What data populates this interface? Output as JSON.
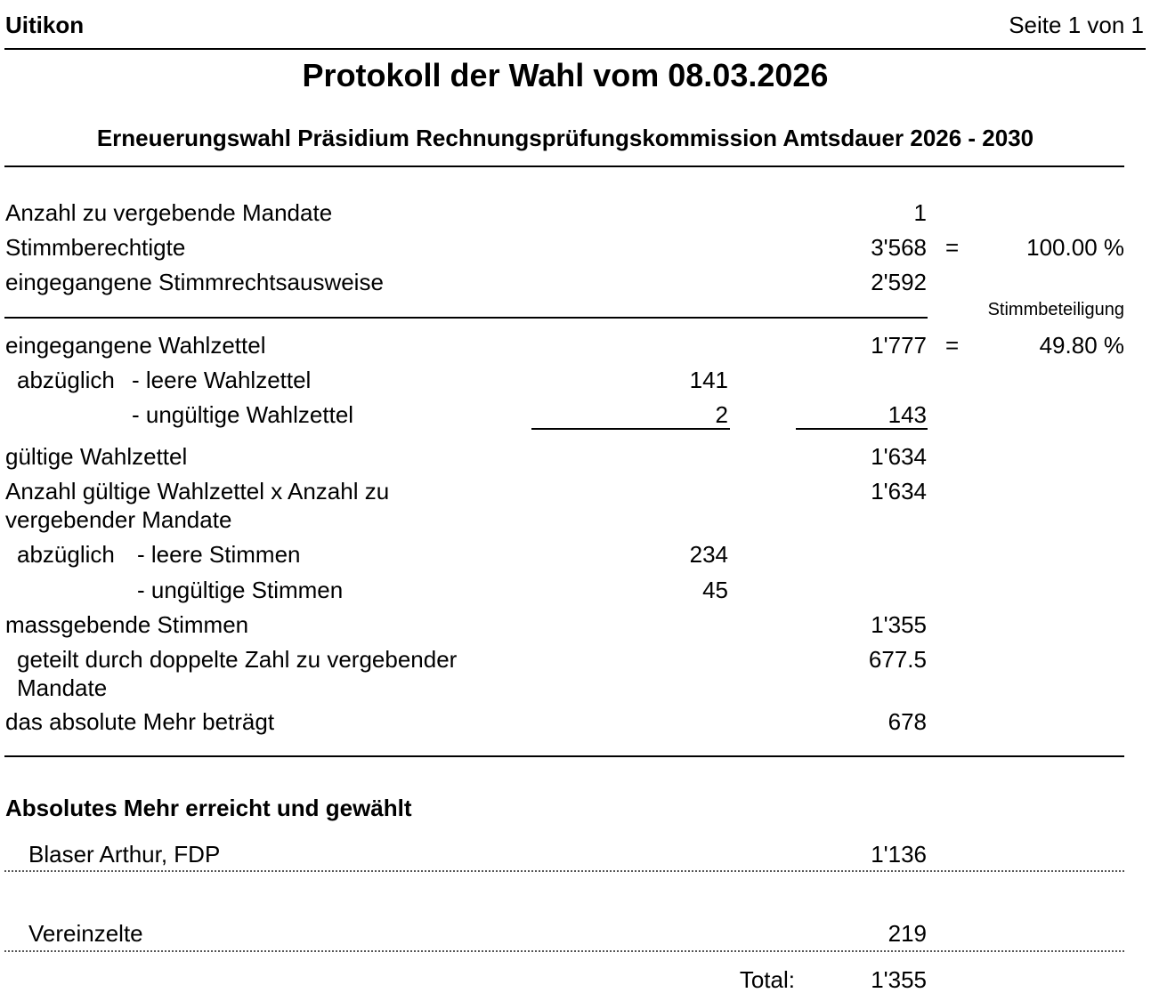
{
  "header": {
    "municipality": "Uitikon",
    "page": "Seite 1 von 1"
  },
  "title": "Protokoll der Wahl vom 08.03.2026",
  "subtitle": "Erneuerungswahl Präsidium Rechnungsprüfungskommission Amtsdauer 2026 - 2030",
  "rows": [
    {
      "label": "Anzahl zu vergebende Mandate",
      "total": "1"
    },
    {
      "label": "Stimmberechtigte",
      "total": "3'568",
      "sign": "=",
      "percent": "100.00 %"
    },
    {
      "label": "eingegangene Stimmrechtsausweise",
      "total": "2'592"
    },
    {
      "label": "eingegangene Wahlzettel",
      "total": "1'777",
      "sign": "=",
      "percent": "49.80 %"
    },
    {
      "prefix": "abzüglich",
      "label": "- leere Wahlzettel",
      "amount": "141"
    },
    {
      "label": "- ungültige Wahlzettel",
      "amount": "2",
      "total": "143"
    },
    {
      "label": "gültige Wahlzettel",
      "total": "1'634"
    },
    {
      "label": "Anzahl gültige Wahlzettel x Anzahl zu vergebender Mandate",
      "total": "1'634"
    },
    {
      "prefix": "abzüglich",
      "label": "- leere Stimmen",
      "amount": "234"
    },
    {
      "label": "- ungültige Stimmen",
      "amount": "45"
    },
    {
      "label": "massgebende Stimmen",
      "total": "1'355"
    },
    {
      "label": "geteilt durch doppelte Zahl zu vergebender Mandate",
      "total": "677.5"
    },
    {
      "label": "das absolute Mehr beträgt",
      "total": "678"
    }
  ],
  "turnout_label": "Stimmbeteiligung",
  "result": {
    "heading": "Absolutes Mehr erreicht und gewählt",
    "candidates": [
      {
        "name": "Blaser Arthur, FDP",
        "votes": "1'136"
      },
      {
        "name": "Vereinzelte",
        "votes": "219"
      }
    ],
    "total_label": "Total:",
    "total": "1'355"
  }
}
